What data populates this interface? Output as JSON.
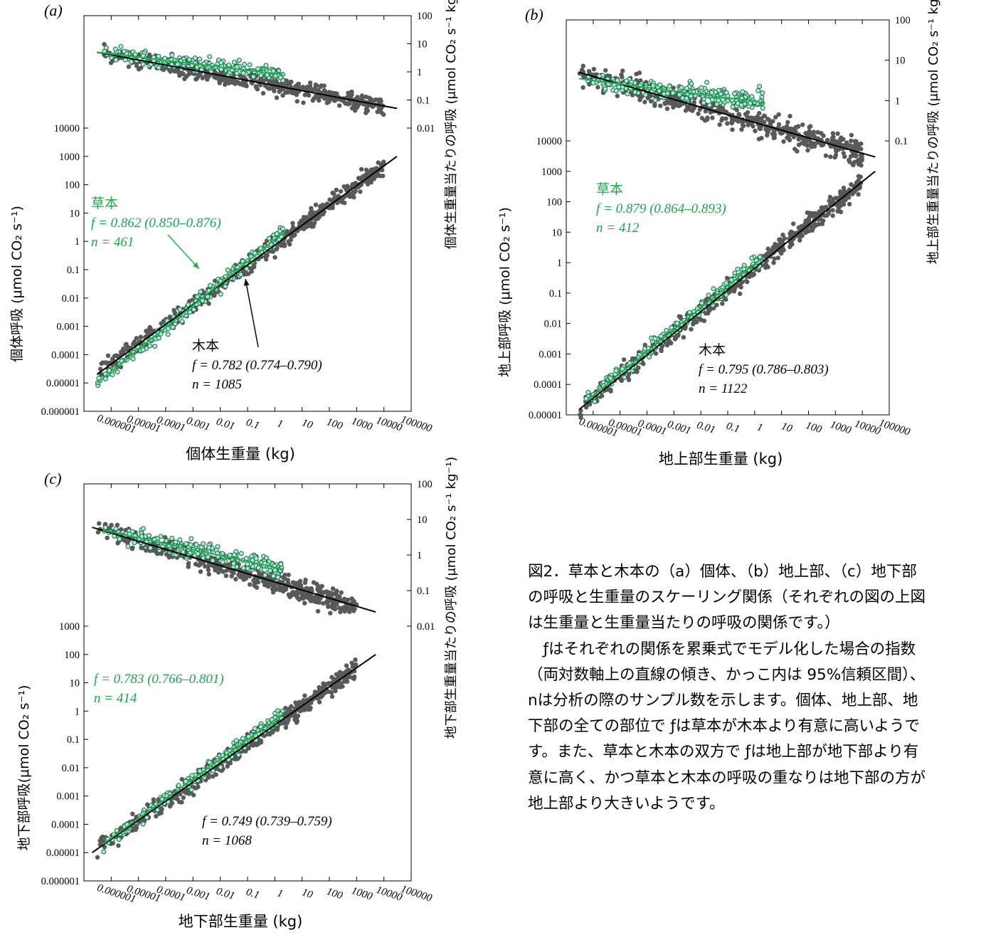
{
  "colors": {
    "herb": "#22b14c",
    "herb_fill": "#a8ecd6",
    "herb_stroke": "#1e6b45",
    "wood": "#595959",
    "text_herb": "#1aa84a"
  },
  "chart_data": [
    {
      "type": "scatter",
      "panel_label": "(a)",
      "xlabel": "個体生重量 (kg)",
      "ylabel": "個体呼吸 (μmol CO₂ s⁻¹)",
      "ylabel_right": "個体生重量当たりの呼吸 (μmol CO₂ s⁻¹ kg⁻¹)",
      "x_log_range": [
        1e-07,
        100000
      ],
      "x_ticks": [
        "0.000001",
        "0.00001",
        "0.0001",
        "0.001",
        "0.01",
        "0.1",
        "1",
        "10",
        "100",
        "1000",
        "10000",
        "100000"
      ],
      "y_ticks": [
        "0.000001",
        "0.00001",
        "0.0001",
        "0.001",
        "0.01",
        "0.1",
        "1",
        "10",
        "100",
        "1000",
        "10000"
      ],
      "y_right_ticks": [
        "0.01",
        "0.1",
        "1",
        "10",
        "100"
      ],
      "herb": {
        "label": "草本",
        "f_text": "f = 0.862 (0.850–0.876)",
        "n_text": "n = 461"
      },
      "wood": {
        "label": "木本",
        "f_text": "f = 0.782 (0.774–0.790)",
        "n_text": "n = 1085"
      },
      "fits": {
        "wood_main": {
          "x": [
            3e-07,
            30000
          ],
          "y": [
            2e-05,
            1000
          ]
        },
        "herb_main": {
          "x": [
            3e-07,
            2
          ],
          "y": [
            1e-05,
            2
          ]
        },
        "wood_top": {
          "x": [
            3e-07,
            30000
          ],
          "y": [
            5,
            0.05
          ]
        },
        "herb_top": {
          "x": [
            3e-07,
            2
          ],
          "y": [
            5,
            0.8
          ]
        }
      },
      "herb_range": [
        3e-07,
        2
      ],
      "wood_range": [
        3e-07,
        10000
      ]
    },
    {
      "type": "scatter",
      "panel_label": "(b)",
      "xlabel": "地上部生重量 (kg)",
      "ylabel": "地上部呼吸 (μmol CO₂ s⁻¹)",
      "ylabel_right": "地上部生重量当たりの呼吸 (μmol CO₂ s⁻¹ kg⁻¹)",
      "x_log_range": [
        1e-07,
        100000
      ],
      "x_ticks": [
        "0.000001",
        "0.00001",
        "0.0001",
        "0.001",
        "0.01",
        "0.1",
        "1",
        "10",
        "100",
        "1000",
        "10000",
        "100000"
      ],
      "y_ticks": [
        "0.00001",
        "0.0001",
        "0.001",
        "0.01",
        "0.1",
        "1",
        "10",
        "100",
        "1000",
        "10000"
      ],
      "y_right_ticks": [
        "0.1",
        "1",
        "10",
        "100"
      ],
      "herb": {
        "label": "草本",
        "f_text": "f = 0.879 (0.864–0.893)",
        "n_text": "n = 412"
      },
      "wood": {
        "label": "木本",
        "f_text": "f = 0.795 (0.786–0.803)",
        "n_text": "n = 1122"
      },
      "fits": {
        "wood_main": {
          "x": [
            3e-07,
            30000
          ],
          "y": [
            1.5e-05,
            1000
          ]
        },
        "herb_main": {
          "x": [
            6e-07,
            2
          ],
          "y": [
            3e-05,
            1.5
          ]
        },
        "wood_top": {
          "x": [
            3e-07,
            30000
          ],
          "y": [
            5,
            0.04
          ]
        },
        "herb_top": {
          "x": [
            3e-07,
            2
          ],
          "y": [
            3.5,
            0.9
          ]
        }
      },
      "herb_range": [
        5e-07,
        2
      ],
      "wood_range": [
        3e-07,
        10000
      ]
    },
    {
      "type": "scatter",
      "panel_label": "(c)",
      "xlabel": "地下部生重量 (kg)",
      "ylabel": "地下部呼吸(μmol CO₂ s⁻¹)",
      "ylabel_right": "地下部生重量当たりの呼吸 (μmol CO₂ s⁻¹ kg⁻¹)",
      "x_log_range": [
        1e-07,
        100000
      ],
      "x_ticks": [
        "0.000001",
        "0.00001",
        "0.0001",
        "0.001",
        "0.01",
        "0.1",
        "1",
        "10",
        "100",
        "1000",
        "10000",
        "100000"
      ],
      "y_ticks": [
        "0.000001",
        "0.00001",
        "0.0001",
        "0.001",
        "0.01",
        "0.1",
        "1",
        "10",
        "100",
        "1000"
      ],
      "y_right_ticks": [
        "0.01",
        "0.1",
        "1",
        "10",
        "100"
      ],
      "herb": {
        "label": "",
        "f_text": "f = 0.783 (0.766–0.801)",
        "n_text": "n = 414"
      },
      "wood": {
        "label": "",
        "f_text": "f = 0.749 (0.739–0.759)",
        "n_text": "n = 1068"
      },
      "fits": {
        "wood_main": {
          "x": [
            2e-07,
            5000
          ],
          "y": [
            1e-05,
            100
          ]
        },
        "herb_main": {
          "x": [
            5e-07,
            2
          ],
          "y": [
            2e-05,
            0.8
          ]
        },
        "wood_top": {
          "x": [
            2e-07,
            5000
          ],
          "y": [
            6,
            0.025
          ]
        },
        "herb_top": {
          "x": [
            5e-07,
            2
          ],
          "y": [
            5,
            0.4
          ]
        }
      },
      "herb_range": [
        5e-07,
        2
      ],
      "wood_range": [
        3e-07,
        1000
      ]
    }
  ],
  "caption": {
    "title": "図2．草本と木本の（a）個体、（b）地上部、（c）地下部の呼吸と生重量のスケーリング関係（それぞれの図の上図は生重量と生重量当たりの呼吸の関係です。）",
    "body": "ƒはそれぞれの関係を累乗式でモデル化した場合の指数（両対数軸上の直線の傾き、かっこ内は 95%信頼区間）、nは分析の際のサンプル数を示します。個体、地上部、地下部の全ての部位で ƒは草本が木本より有意に高いようです。また、草本と木本の双方で ƒは地上部が地下部より有意に高く、かつ草本と木本の呼吸の重なりは地下部の方が地上部より大きいようです。"
  }
}
